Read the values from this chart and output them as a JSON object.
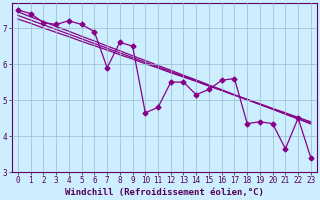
{
  "xlabel": "Windchill (Refroidissement éolien,°C)",
  "bg_color": "#cceeff",
  "line_color": "#880088",
  "grid_color": "#99bbcc",
  "axis_color": "#660066",
  "text_color": "#550055",
  "xlim": [
    -0.5,
    23.5
  ],
  "ylim": [
    3.0,
    7.7
  ],
  "yticks": [
    3,
    4,
    5,
    6,
    7
  ],
  "xticks": [
    0,
    1,
    2,
    3,
    4,
    5,
    6,
    7,
    8,
    9,
    10,
    11,
    12,
    13,
    14,
    15,
    16,
    17,
    18,
    19,
    20,
    21,
    22,
    23
  ],
  "data_y": [
    7.5,
    7.4,
    7.15,
    7.1,
    7.2,
    7.1,
    6.9,
    5.9,
    6.6,
    6.5,
    4.65,
    4.8,
    5.5,
    5.5,
    5.15,
    5.3,
    5.55,
    5.6,
    4.35,
    4.4,
    4.35,
    3.65,
    4.5,
    3.4
  ],
  "trend_y1": [
    7.45,
    7.31,
    7.18,
    7.04,
    6.91,
    6.77,
    6.64,
    6.5,
    6.37,
    6.23,
    6.1,
    5.96,
    5.83,
    5.69,
    5.56,
    5.42,
    5.29,
    5.15,
    5.02,
    4.88,
    4.75,
    4.61,
    4.48,
    4.34
  ],
  "trend_y2": [
    7.35,
    7.22,
    7.09,
    6.96,
    6.83,
    6.7,
    6.57,
    6.44,
    6.31,
    6.18,
    6.05,
    5.92,
    5.79,
    5.66,
    5.53,
    5.4,
    5.27,
    5.14,
    5.01,
    4.88,
    4.75,
    4.62,
    4.49,
    4.36
  ],
  "trend_y3": [
    7.25,
    7.13,
    7.0,
    6.88,
    6.76,
    6.63,
    6.51,
    6.39,
    6.26,
    6.14,
    6.01,
    5.89,
    5.76,
    5.64,
    5.52,
    5.39,
    5.27,
    5.14,
    5.02,
    4.9,
    4.77,
    4.65,
    4.52,
    4.4
  ],
  "marker": "D",
  "markersize": 2.5,
  "linewidth": 0.9,
  "xlabel_fontsize": 6.5,
  "tick_fontsize": 5.5
}
